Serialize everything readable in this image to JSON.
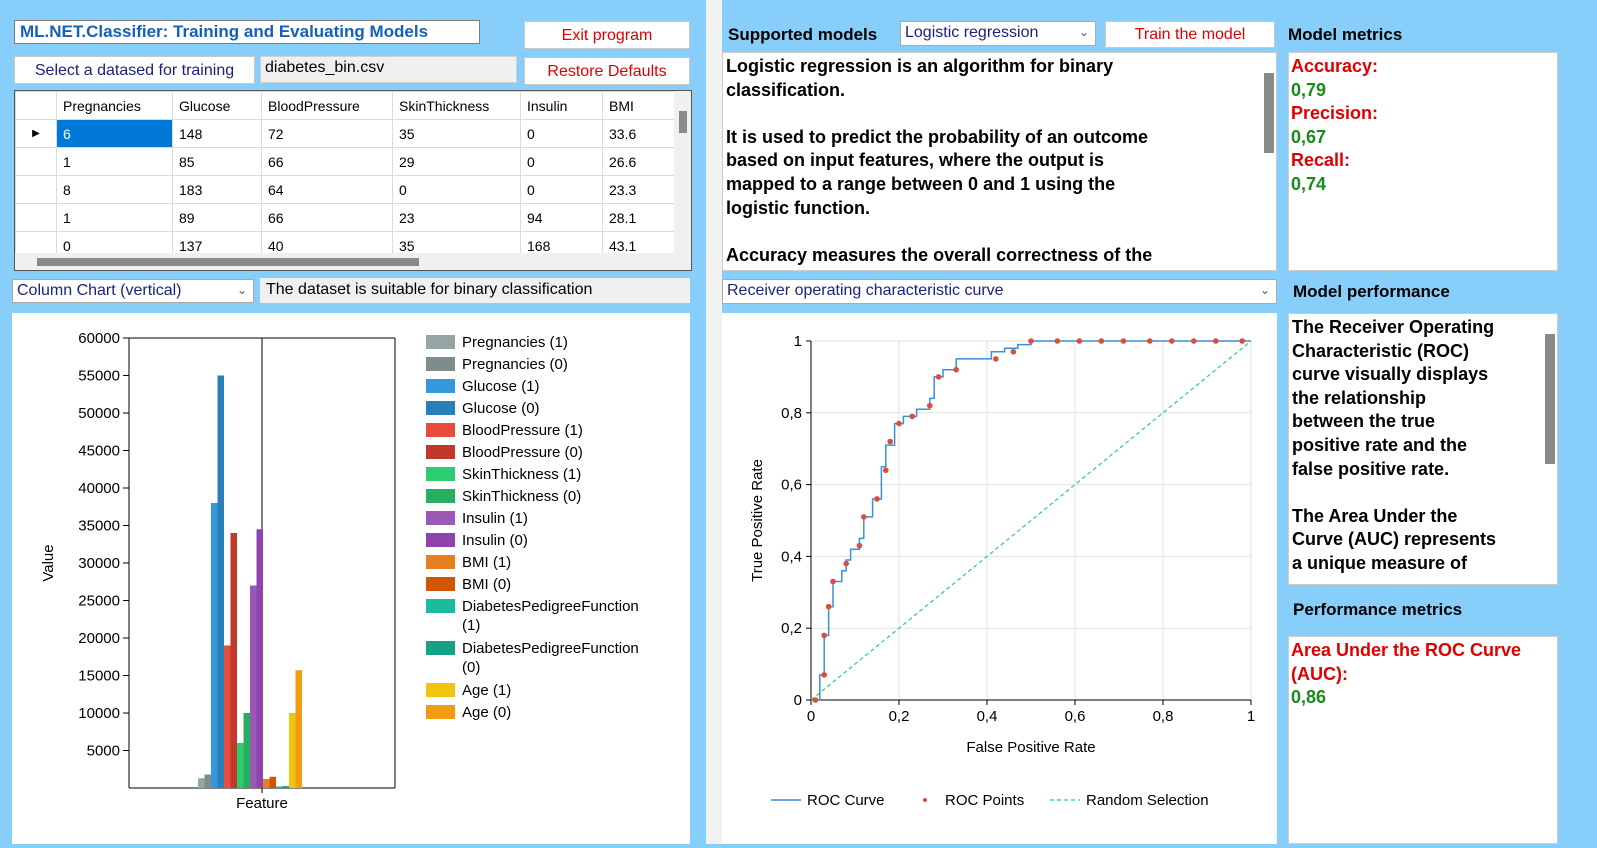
{
  "app": {
    "title": "ML.NET.Classifier: Training and Evaluating Models",
    "exit_label": "Exit program",
    "restore_label": "Restore Defaults",
    "select_dataset_label": "Select a datased for training",
    "dataset_file": "diabetes_bin.csv"
  },
  "grid": {
    "columns": [
      "Pregnancies",
      "Glucose",
      "BloodPressure",
      "SkinThickness",
      "Insulin",
      "BMI"
    ],
    "rows": [
      [
        "6",
        "148",
        "72",
        "35",
        "0",
        "33.6"
      ],
      [
        "1",
        "85",
        "66",
        "29",
        "0",
        "26.6"
      ],
      [
        "8",
        "183",
        "64",
        "0",
        "0",
        "23.3"
      ],
      [
        "1",
        "89",
        "66",
        "23",
        "94",
        "28.1"
      ],
      [
        "0",
        "137",
        "40",
        "35",
        "168",
        "43.1"
      ]
    ],
    "selected_row_marker": "▶"
  },
  "chart_selector": {
    "value": "Column Chart (vertical)"
  },
  "dataset_status": "The dataset is suitable for binary classification",
  "models": {
    "heading": "Supported models",
    "selected": "Logistic regression",
    "train_label": "Train the model",
    "description_lines": [
      "Logistic regression is an algorithm for binary",
      "classification.",
      "",
      "It is used to predict the probability of an outcome",
      "based on input features, where the output is",
      "mapped to a range between 0 and 1 using the",
      "logistic function.",
      "",
      "Accuracy measures the overall correctness of the"
    ]
  },
  "metrics": {
    "heading": "Model metrics",
    "items": [
      {
        "label": "Accuracy:",
        "value": "0,79"
      },
      {
        "label": "Precision:",
        "value": "0,67"
      },
      {
        "label": "Recall:",
        "value": "0,74"
      }
    ]
  },
  "performance": {
    "selector": "Receiver operating characteristic curve",
    "heading": "Model performance",
    "description_lines": [
      "The Receiver Operating",
      "Characteristic (ROC)",
      "curve visually displays",
      "the relationship",
      "between the true",
      "positive rate and the",
      "false positive rate.",
      "",
      "The Area Under the",
      "Curve (AUC) represents",
      "a unique measure of"
    ],
    "metrics_heading": "Performance metrics",
    "auc_label_lines": [
      "Area Under the ROC Curve",
      "(AUC):"
    ],
    "auc_value": "0,86"
  },
  "colors": {
    "background": "#87cefa",
    "accent_red": "#e00000",
    "accent_green": "#1a8a1a",
    "title_blue": "#1560bd",
    "roc_line": "#3a8fd9",
    "roc_points": "#e04b3a",
    "random_line": "#2ecc71"
  },
  "chart_data": [
    {
      "type": "bar",
      "xlabel": "Feature",
      "ylabel": "Value",
      "ylim": [
        0,
        60000
      ],
      "yticks": [
        5000,
        10000,
        15000,
        20000,
        25000,
        30000,
        35000,
        40000,
        45000,
        50000,
        55000,
        60000
      ],
      "categories": [
        "Feature"
      ],
      "legend_position": "right",
      "series": [
        {
          "name": "Pregnancies (1)",
          "values": [
            1300
          ],
          "color": "#95a5a6"
        },
        {
          "name": "Pregnancies (0)",
          "values": [
            1800
          ],
          "color": "#7f8c8d"
        },
        {
          "name": "Glucose (1)",
          "values": [
            38000
          ],
          "color": "#3498db"
        },
        {
          "name": "Glucose (0)",
          "values": [
            55000
          ],
          "color": "#2980b9"
        },
        {
          "name": "BloodPressure (1)",
          "values": [
            19000
          ],
          "color": "#e74c3c"
        },
        {
          "name": "BloodPressure (0)",
          "values": [
            34000
          ],
          "color": "#c0392b"
        },
        {
          "name": "SkinThickness (1)",
          "values": [
            6000
          ],
          "color": "#2ecc71"
        },
        {
          "name": "SkinThickness (0)",
          "values": [
            10000
          ],
          "color": "#27ae60"
        },
        {
          "name": "Insulin (1)",
          "values": [
            27000
          ],
          "color": "#9b59b6"
        },
        {
          "name": "Insulin (0)",
          "values": [
            34500
          ],
          "color": "#8e44ad"
        },
        {
          "name": "BMI (1)",
          "values": [
            1200
          ],
          "color": "#e67e22"
        },
        {
          "name": "BMI (0)",
          "values": [
            1500
          ],
          "color": "#d35400"
        },
        {
          "name": "DiabetesPedigreeFunction (1)",
          "values": [
            200
          ],
          "color": "#1abc9c"
        },
        {
          "name": "DiabetesPedigreeFunction (0)",
          "values": [
            250
          ],
          "color": "#16a085"
        },
        {
          "name": "Age (1)",
          "values": [
            10000
          ],
          "color": "#f1c40f"
        },
        {
          "name": "Age (0)",
          "values": [
            15700
          ],
          "color": "#f39c12"
        }
      ]
    },
    {
      "type": "line",
      "xlabel": "False Positive Rate",
      "ylabel": "True Positive Rate",
      "xlim": [
        0,
        1
      ],
      "ylim": [
        0,
        1
      ],
      "xticks": [
        "0",
        "0,2",
        "0,4",
        "0,6",
        "0,8",
        "1"
      ],
      "yticks": [
        "0",
        "0,2",
        "0,4",
        "0,6",
        "0,8",
        "1"
      ],
      "grid": true,
      "legend_position": "bottom",
      "series": [
        {
          "name": "ROC Curve",
          "style": "step",
          "x": [
            0,
            0.02,
            0.02,
            0.03,
            0.03,
            0.04,
            0.04,
            0.05,
            0.05,
            0.07,
            0.07,
            0.08,
            0.08,
            0.09,
            0.09,
            0.11,
            0.11,
            0.12,
            0.12,
            0.14,
            0.14,
            0.16,
            0.16,
            0.17,
            0.17,
            0.19,
            0.19,
            0.21,
            0.21,
            0.24,
            0.24,
            0.27,
            0.27,
            0.28,
            0.28,
            0.3,
            0.3,
            0.33,
            0.33,
            0.36,
            0.36,
            0.41,
            0.41,
            0.44,
            0.44,
            0.47,
            0.47,
            0.5,
            0.5,
            1.0
          ],
          "y": [
            0,
            0,
            0.07,
            0.07,
            0.18,
            0.18,
            0.26,
            0.26,
            0.33,
            0.33,
            0.36,
            0.36,
            0.39,
            0.39,
            0.42,
            0.42,
            0.45,
            0.45,
            0.51,
            0.51,
            0.56,
            0.56,
            0.65,
            0.65,
            0.71,
            0.71,
            0.77,
            0.77,
            0.79,
            0.79,
            0.81,
            0.81,
            0.84,
            0.84,
            0.9,
            0.9,
            0.92,
            0.92,
            0.95,
            0.95,
            0.95,
            0.95,
            0.97,
            0.97,
            0.98,
            0.98,
            0.99,
            0.99,
            1.0,
            1.0
          ]
        },
        {
          "name": "ROC Points",
          "style": "markers",
          "x": [
            0.01,
            0.03,
            0.03,
            0.04,
            0.05,
            0.08,
            0.11,
            0.12,
            0.15,
            0.17,
            0.18,
            0.2,
            0.23,
            0.27,
            0.29,
            0.33,
            0.42,
            0.46,
            0.5,
            0.56,
            0.61,
            0.66,
            0.71,
            0.77,
            0.82,
            0.87,
            0.92,
            0.98
          ],
          "y": [
            0.0,
            0.07,
            0.18,
            0.26,
            0.33,
            0.38,
            0.43,
            0.51,
            0.56,
            0.64,
            0.72,
            0.77,
            0.79,
            0.82,
            0.9,
            0.92,
            0.95,
            0.97,
            1.0,
            1.0,
            1.0,
            1.0,
            1.0,
            1.0,
            1.0,
            1.0,
            1.0,
            1.0
          ]
        },
        {
          "name": "Random Selection",
          "style": "dashed",
          "x": [
            0,
            1
          ],
          "y": [
            0,
            1
          ]
        }
      ]
    }
  ]
}
